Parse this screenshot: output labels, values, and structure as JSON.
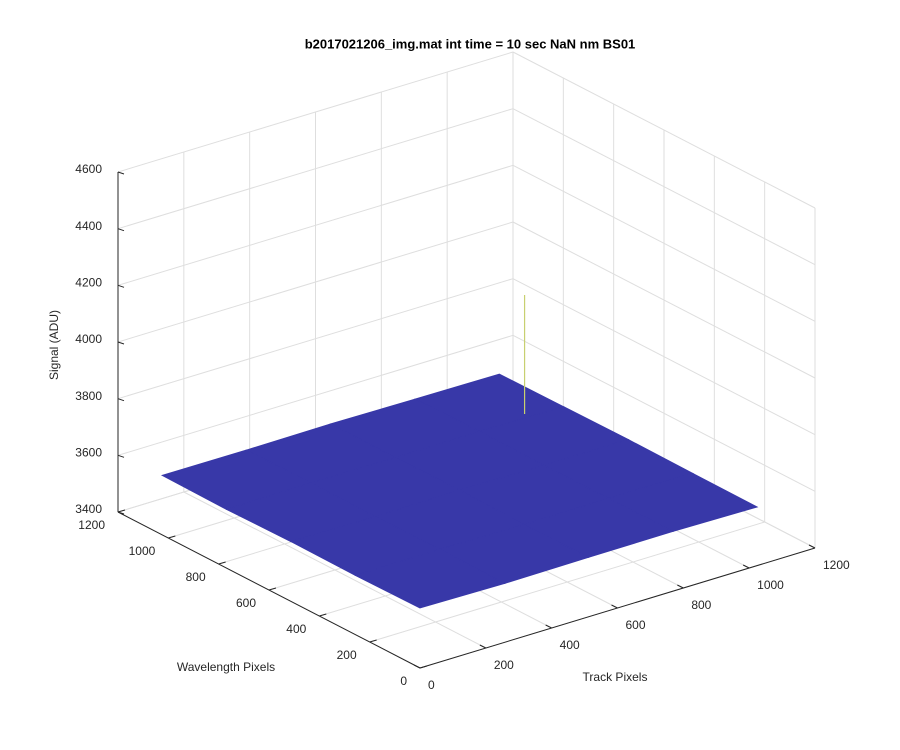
{
  "chart_data": {
    "type": "surface",
    "title": "b2017021206_img.mat int time = 10 sec  NaN nm BS01",
    "xlabel": "Track Pixels",
    "ylabel": "Wavelength Pixels",
    "zlabel": "Signal (ADU)",
    "x": [
      0,
      256,
      512,
      768,
      1024
    ],
    "y": [
      0,
      256,
      512,
      768,
      1024
    ],
    "z": [
      [
        3612,
        3608,
        3610,
        3611,
        3607
      ],
      [
        3609,
        3611,
        3607,
        3610,
        3608
      ],
      [
        3611,
        3608,
        3612,
        3609,
        3610
      ],
      [
        3607,
        3610,
        3609,
        3611,
        3608
      ],
      [
        3610,
        3609,
        3611,
        3608,
        3606
      ]
    ],
    "color": "#3838a8",
    "peak": {
      "x": 700,
      "y": 500,
      "z": 4240,
      "color": "#c8d070"
    },
    "xlim": [
      0,
      1200
    ],
    "ylim": [
      0,
      1200
    ],
    "zlim": [
      3400,
      4600
    ],
    "xticks": [
      0,
      200,
      400,
      600,
      800,
      1000,
      1200
    ],
    "yticks": [
      0,
      200,
      400,
      600,
      800,
      1000,
      1200
    ],
    "zticks": [
      3400,
      3600,
      3800,
      4000,
      4200,
      4400,
      4600
    ],
    "grid": true
  }
}
